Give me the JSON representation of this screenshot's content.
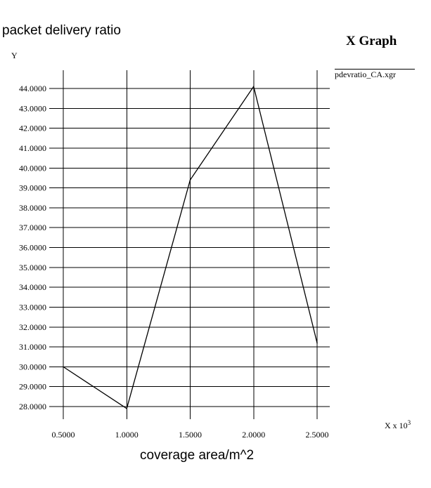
{
  "chart_data": {
    "type": "line",
    "title": "packet delivery ratio",
    "graph_title": "X Graph",
    "ylabel": "Y",
    "xlabel_axis": "X x 10",
    "xlabel_axis_exp": "3",
    "xlabel": "coverage area/m^2",
    "x_ticks": [
      "0.5000",
      "1.0000",
      "1.5000",
      "2.0000",
      "2.5000"
    ],
    "y_ticks": [
      "28.0000",
      "29.0000",
      "30.0000",
      "31.0000",
      "32.0000",
      "33.0000",
      "34.0000",
      "35.0000",
      "36.0000",
      "37.0000",
      "38.0000",
      "39.0000",
      "40.0000",
      "41.0000",
      "42.0000",
      "43.0000",
      "44.0000"
    ],
    "xlim": [
      0.5,
      2.5
    ],
    "ylim": [
      28,
      44
    ],
    "grid": true,
    "legend_position": "top-right",
    "series": [
      {
        "name": "pdevratio_CA.xgr",
        "x": [
          0.5,
          1.0,
          1.5,
          2.0,
          2.5
        ],
        "y": [
          30.0,
          27.9,
          39.4,
          44.1,
          31.2
        ]
      }
    ]
  }
}
